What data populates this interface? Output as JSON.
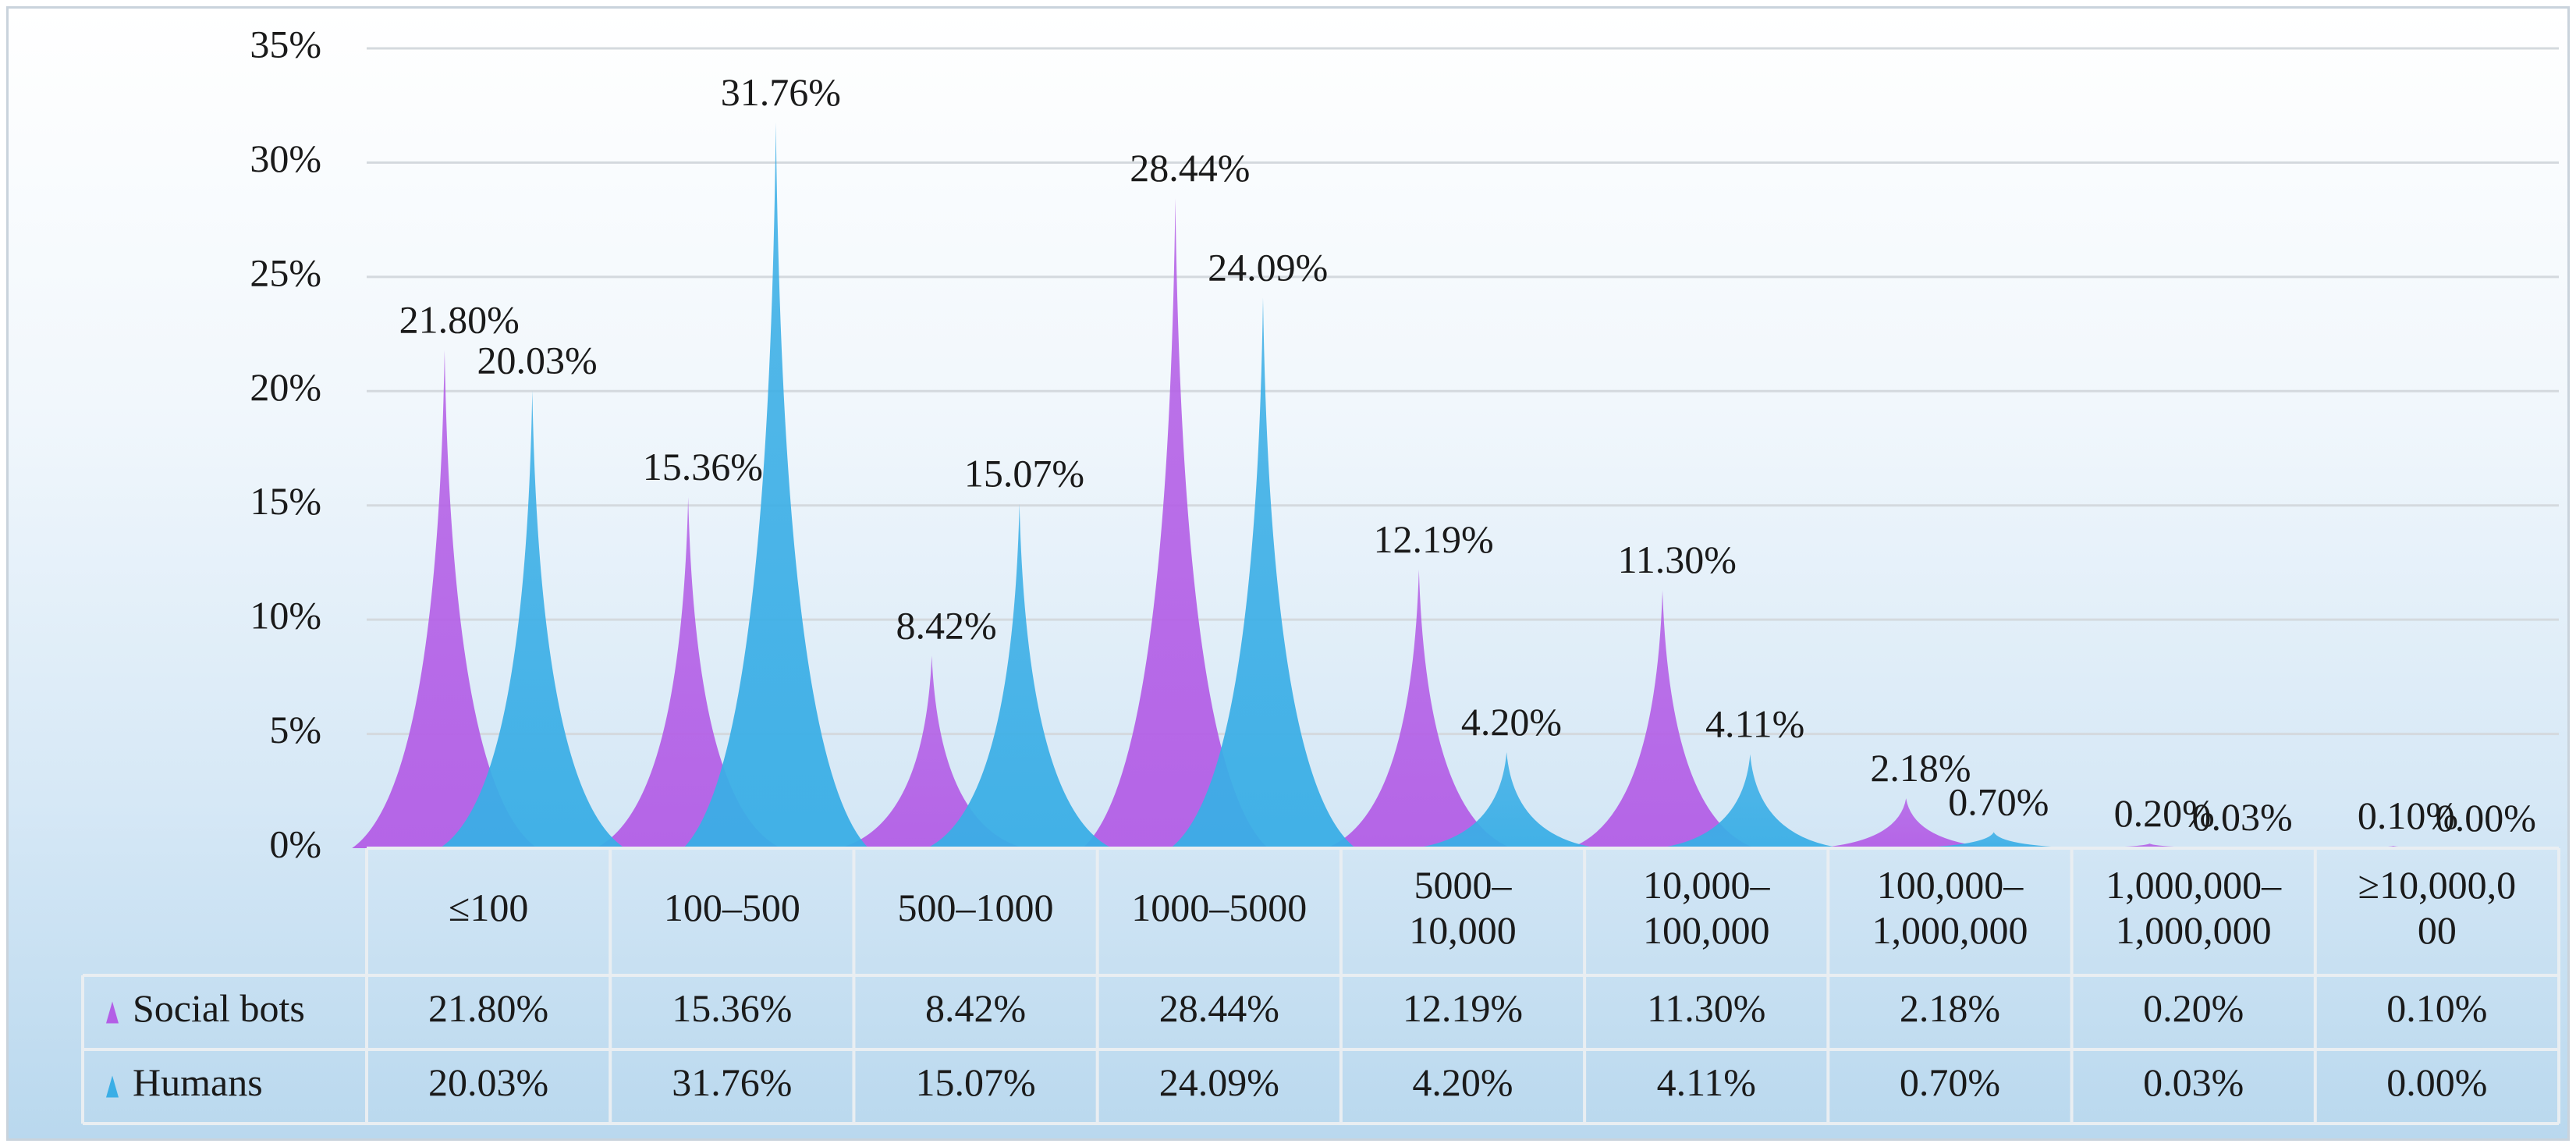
{
  "chart_data": {
    "type": "area",
    "title": "",
    "xlabel": "",
    "ylabel": "",
    "ylim": [
      0,
      35
    ],
    "y_ticks": [
      "0%",
      "5%",
      "10%",
      "15%",
      "20%",
      "25%",
      "30%",
      "35%"
    ],
    "y_tick_values": [
      0,
      5,
      10,
      15,
      20,
      25,
      30,
      35
    ],
    "categories": [
      [
        "≤100"
      ],
      [
        "100–500"
      ],
      [
        "500–1000"
      ],
      [
        "1000–5000"
      ],
      [
        "5000–",
        "10,000"
      ],
      [
        "10,000–",
        "100,000"
      ],
      [
        "100,000–",
        "1,000,000"
      ],
      [
        "1,000,000–",
        "1,000,000"
      ],
      [
        "≥10,000,0",
        "00"
      ]
    ],
    "series": [
      {
        "name": "Social bots",
        "color": "#b35ee6",
        "values": [
          21.8,
          15.36,
          8.42,
          28.44,
          12.19,
          11.3,
          2.18,
          0.2,
          0.1
        ],
        "labels": [
          "21.80%",
          "15.36%",
          "8.42%",
          "28.44%",
          "12.19%",
          "11.30%",
          "2.18%",
          "0.20%",
          "0.10%"
        ]
      },
      {
        "name": "Humans",
        "color": "#3aaee6",
        "values": [
          20.03,
          31.76,
          15.07,
          24.09,
          4.2,
          4.11,
          0.7,
          0.03,
          0.0
        ],
        "labels": [
          "20.03%",
          "31.76%",
          "15.07%",
          "24.09%",
          "4.20%",
          "4.11%",
          "0.70%",
          "0.03%",
          "0.00%"
        ]
      }
    ],
    "data_table": true,
    "grid": true,
    "legend": "data-table"
  }
}
